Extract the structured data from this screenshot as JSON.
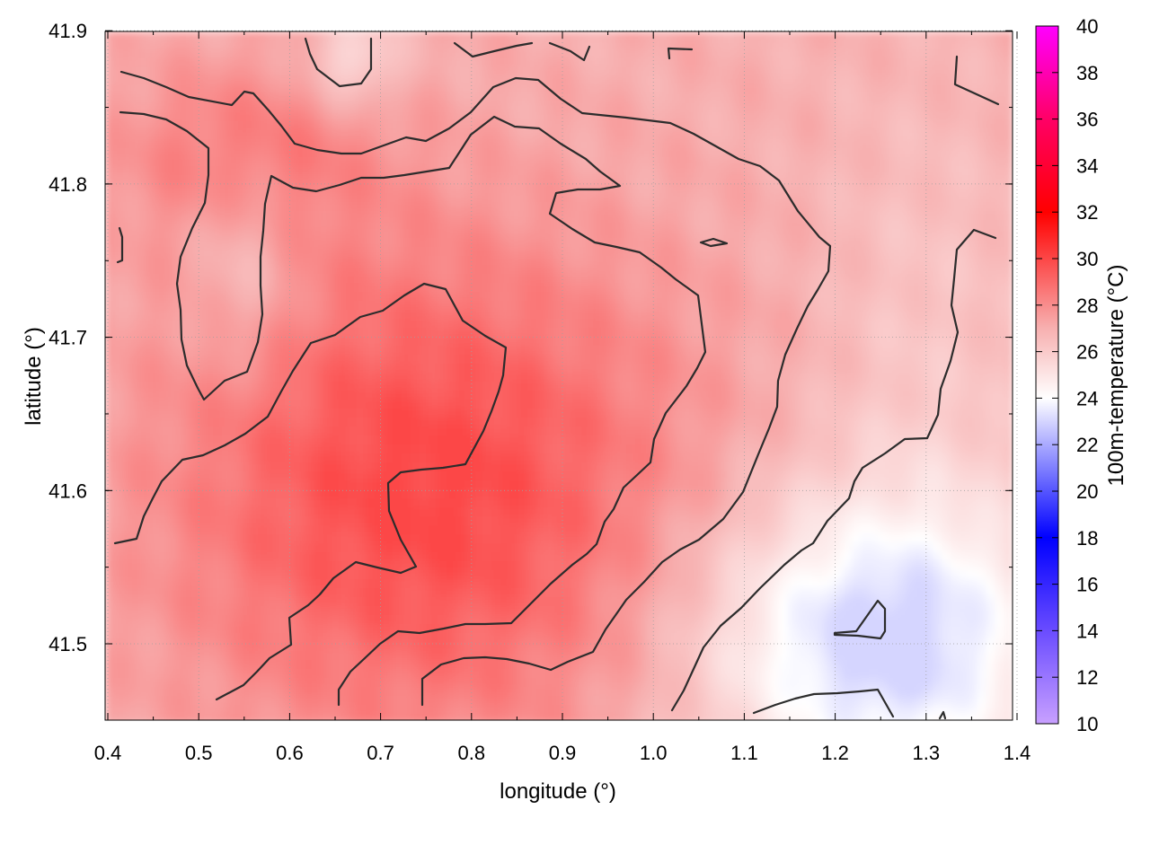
{
  "chart_data": {
    "type": "heatmap",
    "xlabel": "longitude (°)",
    "ylabel": "latitude (°)",
    "colorbar_label": "100m-temperature (°C)",
    "xlim": [
      0.4,
      1.4
    ],
    "ylim": [
      41.45,
      41.9
    ],
    "xticks": [
      "0.4",
      "0.5",
      "0.6",
      "0.7",
      "0.8",
      "0.9",
      "1.0",
      "1.1",
      "1.2",
      "1.3",
      "1.4"
    ],
    "yticks": [
      "41.5",
      "41.6",
      "41.7",
      "41.8",
      "41.9"
    ],
    "colorbar_range": [
      10,
      40
    ],
    "colorbar_ticks": [
      "10",
      "12",
      "14",
      "16",
      "18",
      "20",
      "22",
      "24",
      "26",
      "28",
      "30",
      "32",
      "34",
      "36",
      "38",
      "40"
    ],
    "colorscale": [
      {
        "value": 10,
        "color": "#c8a0ff"
      },
      {
        "value": 14,
        "color": "#6a4cff"
      },
      {
        "value": 18,
        "color": "#0000ff"
      },
      {
        "value": 24,
        "color": "#ffffff"
      },
      {
        "value": 27,
        "color": "#f7b0b0"
      },
      {
        "value": 32,
        "color": "#ff0000"
      },
      {
        "value": 36,
        "color": "#ff0066"
      },
      {
        "value": 40,
        "color": "#ff00ff"
      }
    ],
    "grid": true,
    "contours_shown": true,
    "field_summary": {
      "min_approx": 23,
      "max_approx": 30,
      "warm_core": {
        "lon": 0.75,
        "lat": 41.6,
        "value": 30
      },
      "cool_region": {
        "lon": 1.25,
        "lat": 41.5,
        "value": 23
      }
    }
  }
}
